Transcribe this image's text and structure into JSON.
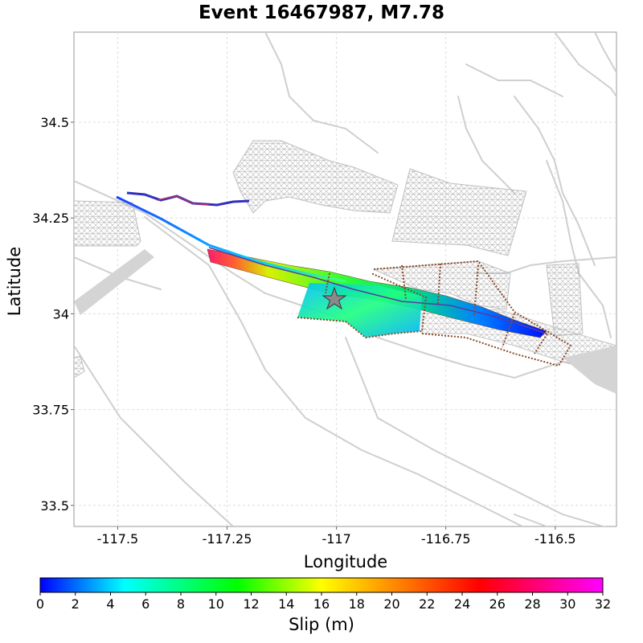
{
  "chart_data": {
    "type": "map",
    "title": "Event 16467987, M7.78",
    "xlabel": "Longitude",
    "ylabel": "Latitude",
    "xlim": [
      -117.6,
      -116.36
    ],
    "ylim": [
      33.445,
      34.735
    ],
    "xticks": [
      -117.5,
      -117.25,
      -117,
      -116.75,
      -116.5
    ],
    "xtick_labels": [
      "-117.5",
      "-117.25",
      "-117",
      "-116.75",
      "-116.5"
    ],
    "yticks": [
      33.5,
      33.75,
      34,
      34.25,
      34.5
    ],
    "ytick_labels": [
      "33.5",
      "33.75",
      "34",
      "34.25",
      "34.5"
    ],
    "grid": true,
    "hypocenter": {
      "lon": -116.98,
      "lat": 34.04
    },
    "colorbar": {
      "label": "Slip (m)",
      "min": 0,
      "max": 32,
      "ticks": [
        0,
        2,
        4,
        6,
        8,
        10,
        12,
        14,
        16,
        18,
        20,
        22,
        24,
        26,
        28,
        30,
        32
      ],
      "tick_labels": [
        "0",
        "2",
        "4",
        "6",
        "8",
        "10",
        "12",
        "14",
        "16",
        "18",
        "20",
        "22",
        "24",
        "26",
        "28",
        "30",
        "32"
      ],
      "colors": [
        "#0000ff",
        "#00ffff",
        "#00ff00",
        "#ffff00",
        "#ff0000",
        "#ff00ff"
      ]
    },
    "colors": {
      "faults": "#cfcfcf",
      "mesh": "#b5b5b5",
      "grid": "#dddddd",
      "rupture_outline": "#8a4a2a"
    }
  }
}
